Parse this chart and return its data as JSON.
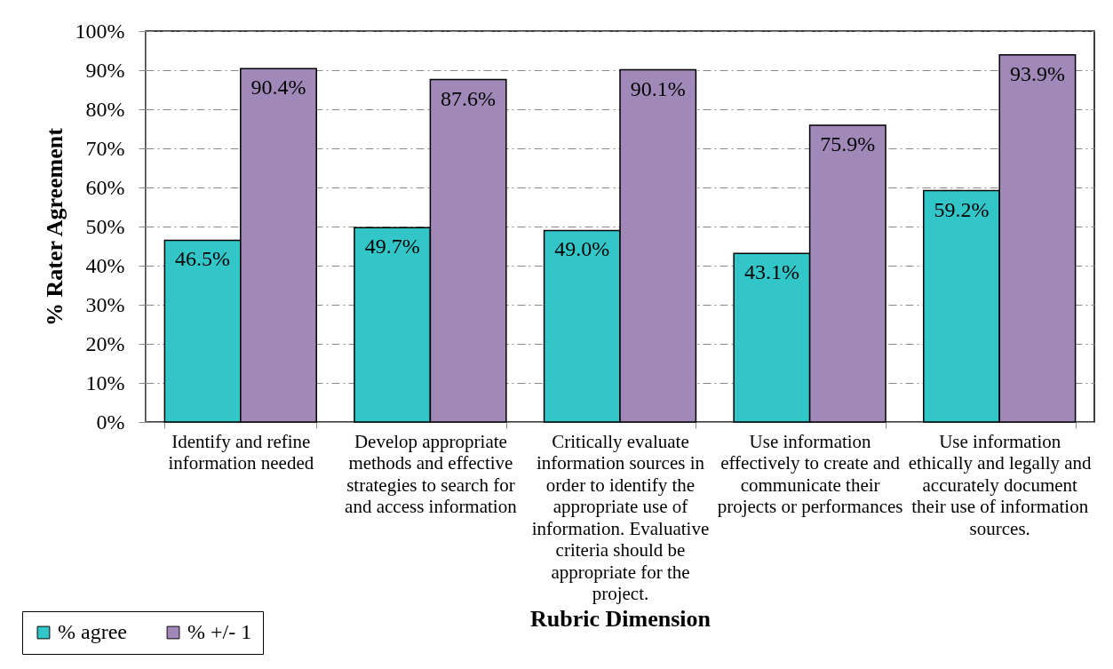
{
  "chart_data": {
    "type": "bar",
    "xlabel": "Rubric Dimension",
    "ylabel": "% Rater Agreement",
    "categories": [
      "Identify and refine\ninformation needed",
      "Develop appropriate\nmethods and effective\nstrategies to search for\nand access information",
      "Critically evaluate\ninformation sources in\norder to identify the\nappropriate use of\ninformation. Evaluative\ncriteria should be\nappropriate for the\nproject.",
      "Use information\neffectively to create and\ncommunicate their\nprojects or performances",
      "Use information\nethically and legally and\naccurately document\ntheir use of information\nsources."
    ],
    "series": [
      {
        "name": "% agree",
        "color": "#33c6c9",
        "values": [
          46.5,
          49.7,
          49.0,
          43.1,
          59.2
        ],
        "value_labels": [
          "46.5%",
          "49.7%",
          "49.0%",
          "43.1%",
          "59.2%"
        ]
      },
      {
        "name": "% +/- 1",
        "color": "#a089b8",
        "values": [
          90.4,
          87.6,
          90.1,
          75.9,
          93.9
        ],
        "value_labels": [
          "90.4%",
          "87.6%",
          "90.1%",
          "75.9%",
          "93.9%"
        ]
      }
    ],
    "ylim": [
      0,
      100
    ],
    "yticks": [
      {
        "value": 0,
        "label": "0%"
      },
      {
        "value": 10,
        "label": "10%"
      },
      {
        "value": 20,
        "label": "20%"
      },
      {
        "value": 30,
        "label": "30%"
      },
      {
        "value": 40,
        "label": "40%"
      },
      {
        "value": 50,
        "label": "50%"
      },
      {
        "value": 60,
        "label": "60%"
      },
      {
        "value": 70,
        "label": "70%"
      },
      {
        "value": 80,
        "label": "80%"
      },
      {
        "value": 90,
        "label": "90%"
      },
      {
        "value": 100,
        "label": "100%"
      }
    ],
    "grid": "y",
    "legend": "bottom left"
  }
}
